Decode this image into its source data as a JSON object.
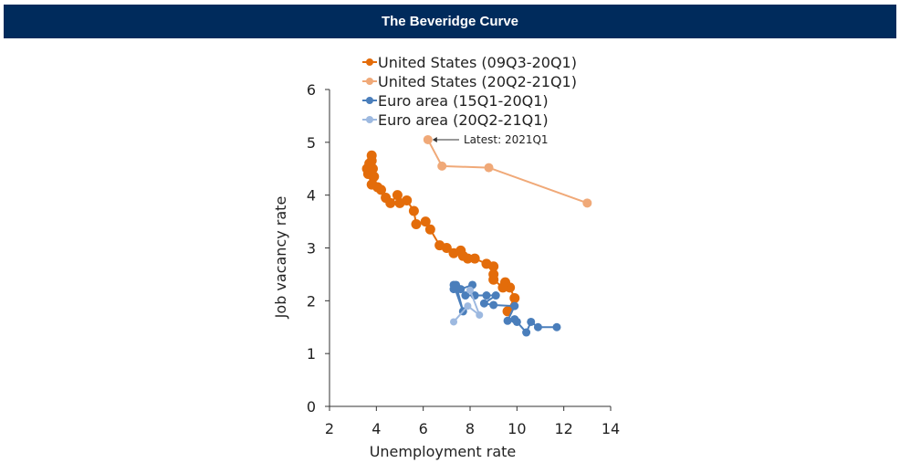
{
  "header": {
    "title": "The Beveridge Curve"
  },
  "chart_data": {
    "type": "line",
    "title": "The Beveridge Curve",
    "xlabel": "Unemployment rate",
    "ylabel": "Job vacancy rate",
    "xlim": [
      2,
      14
    ],
    "ylim": [
      0,
      6
    ],
    "xticks": [
      2,
      4,
      6,
      8,
      10,
      12,
      14
    ],
    "yticks": [
      0,
      1,
      2,
      3,
      4,
      5,
      6
    ],
    "legend": "top",
    "annotation": "Latest: 2021Q1",
    "series": [
      {
        "name": "United States (09Q3-20Q1)",
        "color": "#e36c0a",
        "points": [
          [
            9.6,
            1.8
          ],
          [
            9.9,
            2.05
          ],
          [
            9.7,
            2.25
          ],
          [
            9.5,
            2.35
          ],
          [
            9.4,
            2.25
          ],
          [
            9.0,
            2.4
          ],
          [
            9.0,
            2.5
          ],
          [
            9.0,
            2.65
          ],
          [
            8.7,
            2.7
          ],
          [
            8.2,
            2.8
          ],
          [
            7.9,
            2.8
          ],
          [
            7.7,
            2.85
          ],
          [
            7.6,
            2.95
          ],
          [
            7.3,
            2.9
          ],
          [
            7.0,
            3.0
          ],
          [
            6.7,
            3.05
          ],
          [
            6.3,
            3.35
          ],
          [
            6.1,
            3.5
          ],
          [
            5.7,
            3.45
          ],
          [
            5.6,
            3.7
          ],
          [
            5.3,
            3.9
          ],
          [
            5.0,
            3.85
          ],
          [
            4.9,
            4.0
          ],
          [
            4.6,
            3.85
          ],
          [
            4.4,
            3.95
          ],
          [
            4.2,
            4.1
          ],
          [
            4.05,
            4.15
          ],
          [
            3.9,
            4.35
          ],
          [
            3.8,
            4.2
          ],
          [
            3.65,
            4.4
          ],
          [
            3.6,
            4.5
          ],
          [
            3.7,
            4.55
          ],
          [
            3.85,
            4.5
          ],
          [
            3.8,
            4.65
          ],
          [
            3.8,
            4.75
          ],
          [
            3.7,
            4.6
          ]
        ]
      },
      {
        "name": "United States (20Q2-21Q1)",
        "color": "#f0a978",
        "points": [
          [
            13.0,
            3.85
          ],
          [
            8.8,
            4.52
          ],
          [
            6.8,
            4.55
          ],
          [
            6.2,
            5.05
          ]
        ]
      },
      {
        "name": "Euro area (15Q1-20Q1)",
        "color": "#4a7ebb",
        "points": [
          [
            11.7,
            1.5
          ],
          [
            10.9,
            1.5
          ],
          [
            10.6,
            1.6
          ],
          [
            10.4,
            1.4
          ],
          [
            10.0,
            1.6
          ],
          [
            9.9,
            1.65
          ],
          [
            9.6,
            1.62
          ],
          [
            9.9,
            1.9
          ],
          [
            9.0,
            1.92
          ],
          [
            8.6,
            1.95
          ],
          [
            9.1,
            2.1
          ],
          [
            8.7,
            2.1
          ],
          [
            8.2,
            2.1
          ],
          [
            7.8,
            2.1
          ],
          [
            8.1,
            2.3
          ],
          [
            7.6,
            2.22
          ],
          [
            7.3,
            2.22
          ],
          [
            7.4,
            2.3
          ],
          [
            7.7,
            1.8
          ],
          [
            7.3,
            2.3
          ]
        ]
      },
      {
        "name": "Euro area (20Q2-21Q1)",
        "color": "#9db9e0",
        "points": [
          [
            8.0,
            2.2
          ],
          [
            8.4,
            1.73
          ],
          [
            7.9,
            1.9
          ],
          [
            7.3,
            1.6
          ]
        ]
      }
    ]
  }
}
